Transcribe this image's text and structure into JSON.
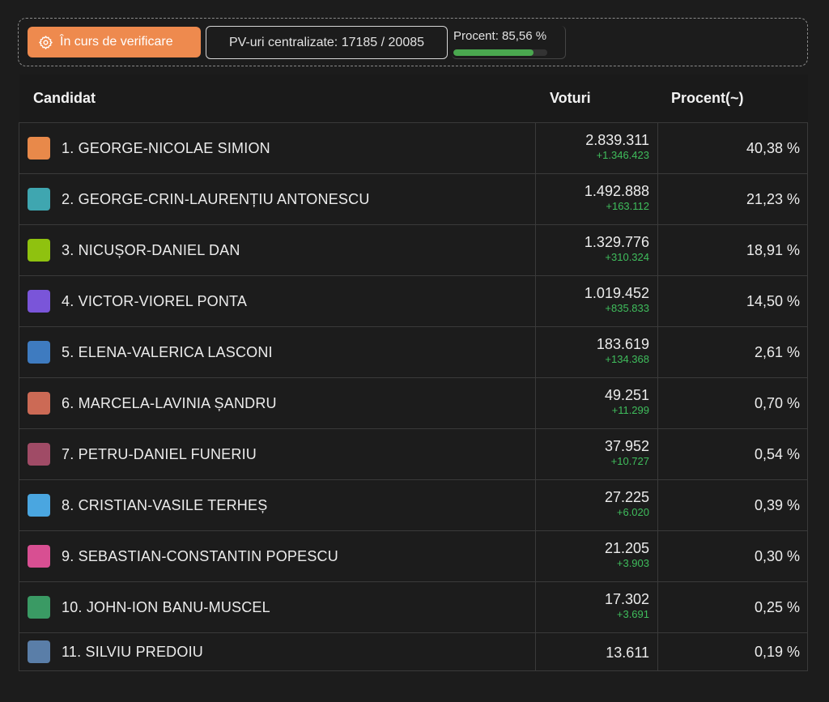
{
  "status": {
    "verify_label": "În curs de verificare",
    "pv_label": "PV-uri centralizate: 17185 / 20085",
    "percent_label": "Procent: 85,56 %",
    "percent_value": 85.56,
    "accent_color": "#ee8a4e",
    "progress_color": "#4aa84f"
  },
  "table": {
    "headers": {
      "candidate": "Candidat",
      "votes": "Voturi",
      "percent": "Procent(~)"
    },
    "rows": [
      {
        "name": "1. GEORGE-NICOLAE SIMION",
        "votes": "2.839.311",
        "delta": "+1.346.423",
        "percent": "40,38 %",
        "color": "#e8894a"
      },
      {
        "name": "2. GEORGE-CRIN-LAURENȚIU ANTONESCU",
        "votes": "1.492.888",
        "delta": "+163.112",
        "percent": "21,23 %",
        "color": "#3fa6b0"
      },
      {
        "name": "3. NICUȘOR-DANIEL DAN",
        "votes": "1.329.776",
        "delta": "+310.324",
        "percent": "18,91 %",
        "color": "#8fc20f"
      },
      {
        "name": "4. VICTOR-VIOREL PONTA",
        "votes": "1.019.452",
        "delta": "+835.833",
        "percent": "14,50 %",
        "color": "#7a55d9"
      },
      {
        "name": "5. ELENA-VALERICA LASCONI",
        "votes": "183.619",
        "delta": "+134.368",
        "percent": "2,61 %",
        "color": "#3e7bc0"
      },
      {
        "name": "6. MARCELA-LAVINIA ȘANDRU",
        "votes": "49.251",
        "delta": "+11.299",
        "percent": "0,70 %",
        "color": "#cc6a55"
      },
      {
        "name": "7. PETRU-DANIEL FUNERIU",
        "votes": "37.952",
        "delta": "+10.727",
        "percent": "0,54 %",
        "color": "#a04b66"
      },
      {
        "name": "8. CRISTIAN-VASILE TERHEȘ",
        "votes": "27.225",
        "delta": "+6.020",
        "percent": "0,39 %",
        "color": "#4aa6e0"
      },
      {
        "name": "9. SEBASTIAN-CONSTANTIN POPESCU",
        "votes": "21.205",
        "delta": "+3.903",
        "percent": "0,30 %",
        "color": "#d84f92"
      },
      {
        "name": "10. JOHN-ION BANU-MUSCEL",
        "votes": "17.302",
        "delta": "+3.691",
        "percent": "0,25 %",
        "color": "#3a9a64"
      },
      {
        "name": "11. SILVIU PREDOIU",
        "votes": "13.611",
        "delta": "",
        "percent": "0,19 %",
        "color": "#5a7ea8"
      }
    ]
  }
}
